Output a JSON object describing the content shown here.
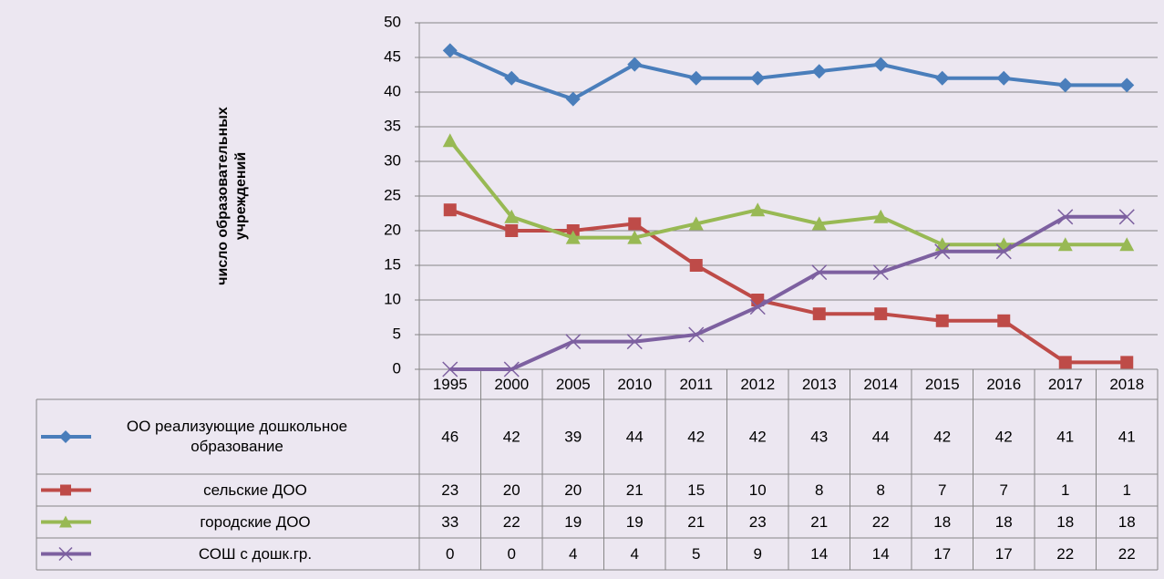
{
  "chart_data": {
    "type": "line",
    "y_label": "число образовательных учреждений",
    "categories": [
      "1995",
      "2000",
      "2005",
      "2010",
      "2011",
      "2012",
      "2013",
      "2014",
      "2015",
      "2016",
      "2017",
      "2018"
    ],
    "series": [
      {
        "name": "ОО реализующие дошкольное образование",
        "color": "#4a7ebb",
        "marker": "diamond",
        "values": [
          46,
          42,
          39,
          44,
          42,
          42,
          43,
          44,
          42,
          42,
          41,
          41
        ]
      },
      {
        "name": "сельские ДОО",
        "color": "#be4b48",
        "marker": "square",
        "values": [
          23,
          20,
          20,
          21,
          15,
          10,
          8,
          8,
          7,
          7,
          1,
          1
        ]
      },
      {
        "name": "городские ДОО",
        "color": "#98b954",
        "marker": "triangle",
        "values": [
          33,
          22,
          19,
          19,
          21,
          23,
          21,
          22,
          18,
          18,
          18,
          18
        ]
      },
      {
        "name": "СОШ с дошк.гр.",
        "color": "#7d60a0",
        "marker": "x",
        "values": [
          0,
          0,
          4,
          4,
          5,
          9,
          14,
          14,
          17,
          17,
          22,
          22
        ]
      }
    ],
    "ylim": [
      0,
      50
    ],
    "yticks": [
      0,
      5,
      10,
      15,
      20,
      25,
      30,
      35,
      40,
      45,
      50
    ],
    "grid": true,
    "data_table": true
  }
}
